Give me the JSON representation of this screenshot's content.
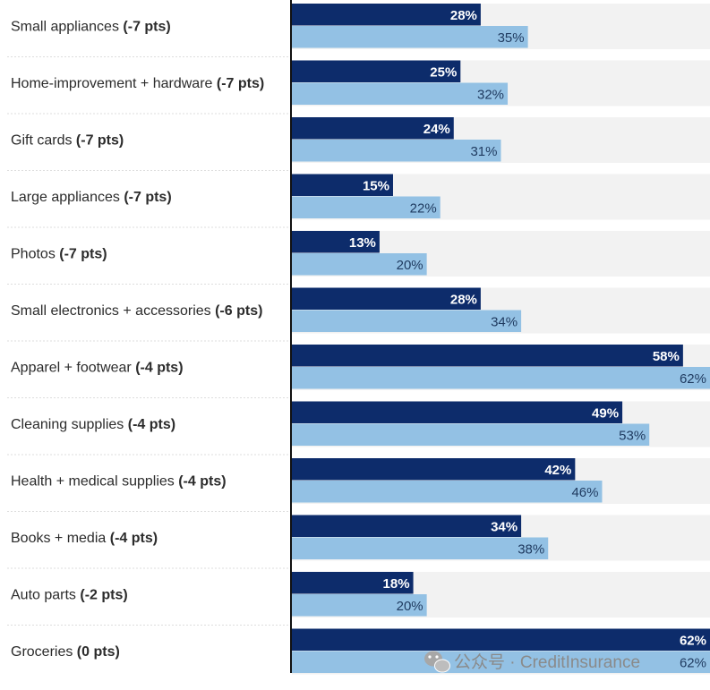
{
  "chart_data": {
    "type": "bar",
    "orientation": "horizontal",
    "categories": [
      "Small appliances",
      "Home-improvement + hardware",
      "Gift cards",
      "Large appliances",
      "Photos",
      "Small electronics + accessories",
      "Apparel + footwear",
      "Cleaning supplies",
      "Health + medical supplies",
      "Books + media",
      "Auto parts",
      "Groceries"
    ],
    "changes": [
      "(-7 pts)",
      "(-7 pts)",
      "(-7 pts)",
      "(-7 pts)",
      "(-7 pts)",
      "(-6 pts)",
      "(-4 pts)",
      "(-4 pts)",
      "(-4 pts)",
      "(-4 pts)",
      "(-2 pts)",
      "(0 pts)"
    ],
    "series": [
      {
        "values": [
          28,
          25,
          24,
          15,
          13,
          28,
          58,
          49,
          42,
          34,
          18,
          62
        ],
        "color": "#0d2c6b"
      },
      {
        "values": [
          35,
          32,
          31,
          22,
          20,
          34,
          62,
          53,
          46,
          38,
          20,
          62
        ],
        "color": "#93c1e4"
      }
    ],
    "value_suffix": "%",
    "xlim": [
      0,
      62
    ],
    "grid": false,
    "row_background": "#f2f2f2"
  },
  "watermark": {
    "text": "公众号 · CreditInsurance",
    "icon": "wechat-icon"
  }
}
